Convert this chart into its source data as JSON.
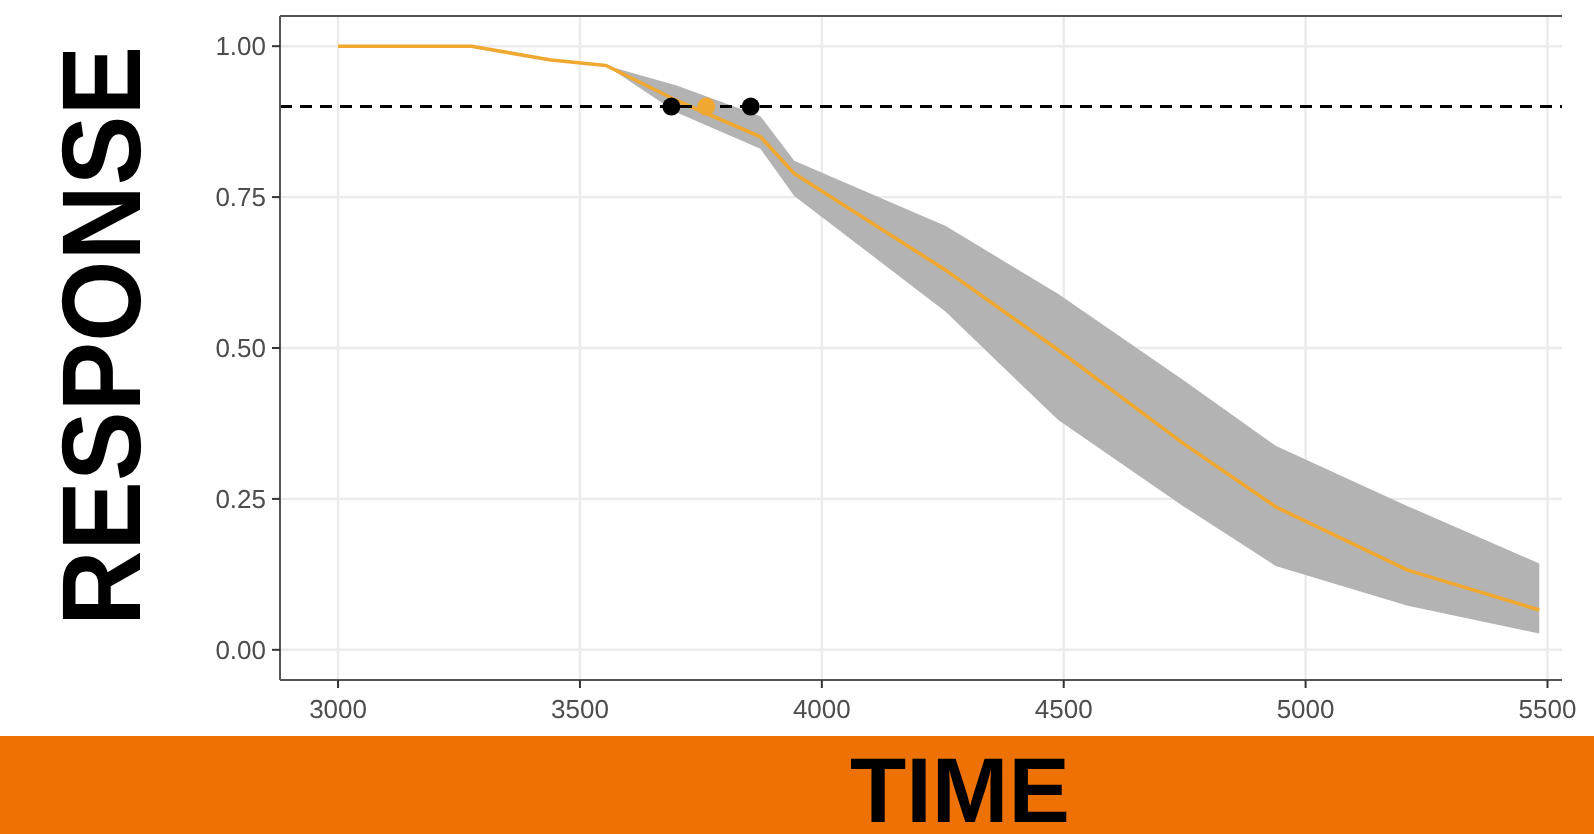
{
  "chart_data": {
    "type": "line",
    "xlabel": "TIME",
    "ylabel": "RESPONSE",
    "xlim": [
      2880,
      5530
    ],
    "ylim": [
      -0.05,
      1.05
    ],
    "xticks": [
      3000,
      3500,
      4000,
      4500,
      5000,
      5500
    ],
    "yticks": [
      {
        "value": 0,
        "label": "0.00"
      },
      {
        "value": 0.25,
        "label": "0.25"
      },
      {
        "value": 0.5,
        "label": "0.50"
      },
      {
        "value": 0.75,
        "label": "0.75"
      },
      {
        "value": 1,
        "label": "1.00"
      }
    ],
    "grid": true,
    "ref_lines": [
      {
        "axis": "y",
        "value": 0.9,
        "line_style": "dashed",
        "color": "#000000"
      }
    ],
    "series": [
      {
        "color": "#f0a830",
        "x": [
          3000,
          3275,
          3440,
          3554,
          3700,
          3873,
          3943,
          4256,
          4488,
          4747,
          4938,
          5211,
          5483
        ],
        "values": [
          1.0,
          1.0,
          0.977,
          0.968,
          0.91,
          0.85,
          0.789,
          0.629,
          0.497,
          0.342,
          0.237,
          0.132,
          0.066
        ],
        "lower": [
          1.0,
          1.0,
          0.977,
          0.968,
          0.89,
          0.83,
          0.752,
          0.56,
          0.381,
          0.238,
          0.139,
          0.073,
          0.027
        ],
        "upper": [
          1.0,
          1.0,
          0.977,
          0.968,
          0.935,
          0.884,
          0.81,
          0.702,
          0.59,
          0.447,
          0.338,
          0.238,
          0.143
        ]
      },
      {
        "type": "scatter",
        "color": "#000000",
        "x": [
          3689,
          3853
        ],
        "values": [
          0.9,
          0.9
        ]
      },
      {
        "type": "scatter",
        "color": "#f0a830",
        "x": [
          3761
        ],
        "values": [
          0.9
        ]
      }
    ]
  }
}
